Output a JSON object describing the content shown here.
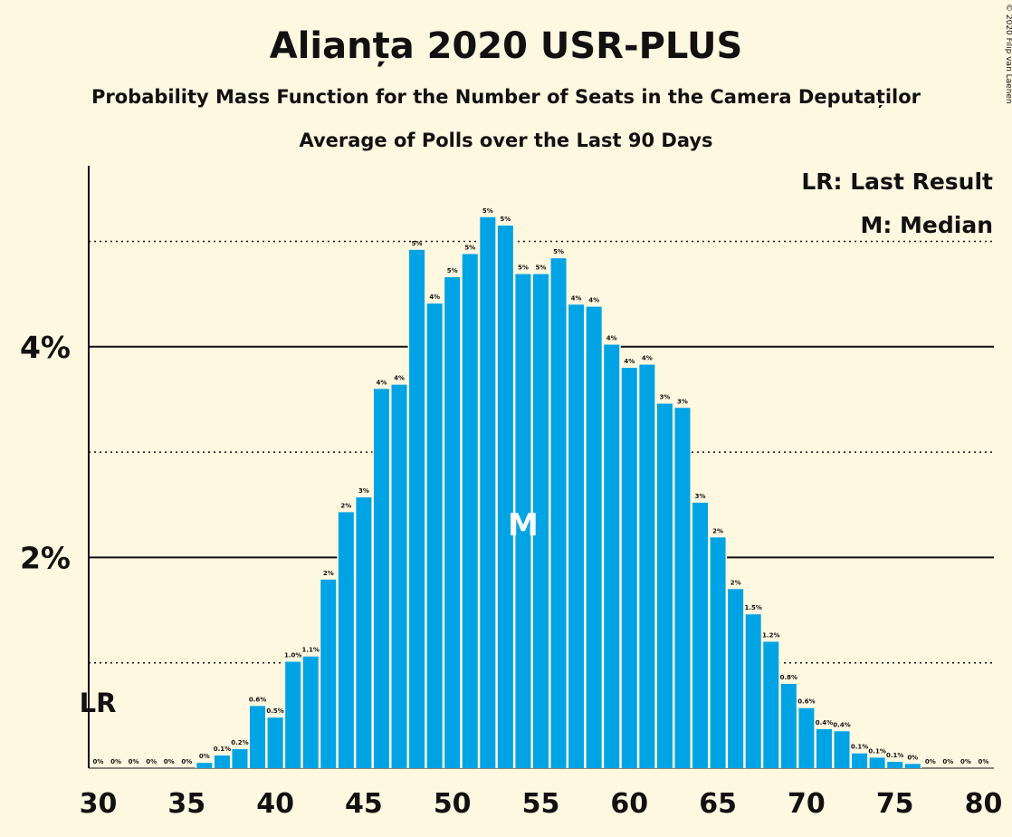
{
  "chart_data": {
    "type": "bar",
    "title": "Alianța 2020 USR-PLUS",
    "subtitle": "Probability Mass Function for the Number of Seats in the Camera Deputaților",
    "subtitle2": "Average of Polls over the Last 90 Days",
    "copyright": "© 2020 Filip van Laenen",
    "legend": [
      "LR: Last Result",
      "M: Median"
    ],
    "legend_position": "top-right",
    "last_result_marker": "LR",
    "median_marker": "M",
    "median_seat": 54,
    "last_result_seat": 30,
    "bar_color": "#00a4e4",
    "x": [
      30,
      31,
      32,
      33,
      34,
      35,
      36,
      37,
      38,
      39,
      40,
      41,
      42,
      43,
      44,
      45,
      46,
      47,
      48,
      49,
      50,
      51,
      52,
      53,
      54,
      55,
      56,
      57,
      58,
      59,
      60,
      61,
      62,
      63,
      64,
      65,
      66,
      67,
      68,
      69,
      70,
      71,
      72,
      73,
      74,
      75,
      76,
      77,
      78,
      79,
      80
    ],
    "values": [
      0,
      0,
      0,
      0,
      0,
      0,
      0.05,
      0.12,
      0.18,
      0.59,
      0.48,
      1.01,
      1.06,
      1.79,
      2.43,
      2.57,
      3.6,
      3.64,
      4.92,
      4.41,
      4.66,
      4.88,
      5.23,
      5.15,
      4.69,
      4.69,
      4.84,
      4.4,
      4.38,
      4.02,
      3.8,
      3.83,
      3.46,
      3.42,
      2.52,
      2.19,
      1.7,
      1.46,
      1.2,
      0.8,
      0.57,
      0.37,
      0.35,
      0.14,
      0.1,
      0.06,
      0.04,
      0,
      0,
      0,
      0
    ],
    "data_labels": [
      "0%",
      "0%",
      "0%",
      "0%",
      "0%",
      "0%",
      "0%",
      "0.1%",
      "0.2%",
      "0.6%",
      "0.5%",
      "1.0%",
      "1.1%",
      "2%",
      "2%",
      "3%",
      "4%",
      "4%",
      "5%",
      "4%",
      "5%",
      "5%",
      "5%",
      "5%",
      "5%",
      "5%",
      "5%",
      "4%",
      "4%",
      "4%",
      "4%",
      "4%",
      "3%",
      "3%",
      "3%",
      "2%",
      "2%",
      "1.5%",
      "1.2%",
      "0.8%",
      "0.6%",
      "0.4%",
      "0.4%",
      "0.1%",
      "0.1%",
      "0.1%",
      "0%",
      "0%",
      "0%",
      "0%",
      "0%"
    ],
    "x_ticks": [
      "30",
      "35",
      "40",
      "45",
      "50",
      "55",
      "60",
      "65",
      "70",
      "75",
      "80"
    ],
    "y_ticks": [
      {
        "value": 2,
        "label": "2%"
      },
      {
        "value": 4,
        "label": "4%"
      }
    ],
    "ylim": [
      0,
      5.7
    ],
    "grid": {
      "solid": [
        2,
        4
      ],
      "dotted": [
        1,
        3,
        5
      ]
    }
  }
}
